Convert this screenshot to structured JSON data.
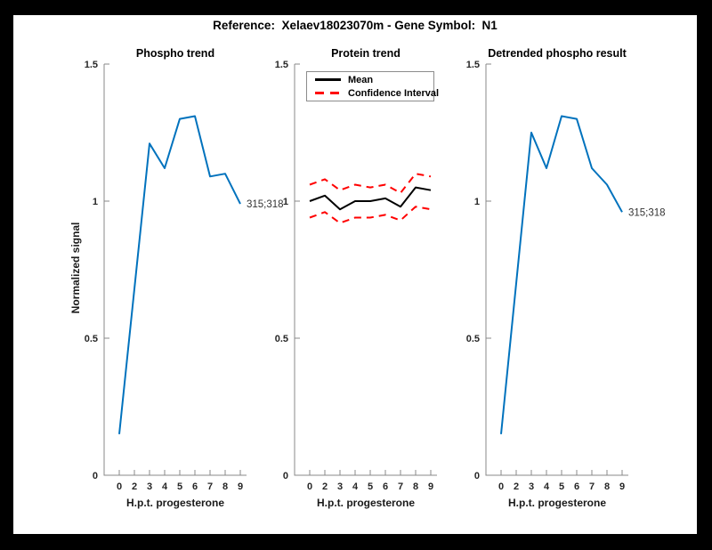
{
  "window": {
    "bg": "#000000",
    "figure_bg": "#ffffff",
    "suptitle": "Reference:  Xelaev18023070m - Gene Symbol:  N1"
  },
  "style": {
    "axis_color": "#888888",
    "tick_label_color": "#262626",
    "annotation_color": "#333333",
    "phospho_blue": "#0072BD",
    "ci_red": "#ff0000",
    "mean_black": "#000000"
  },
  "axes_common": {
    "xlabel": "H.p.t. progesterone",
    "ylabel": "Normalized signal",
    "xticklabels": [
      "0",
      "2",
      "3",
      "4",
      "5",
      "6",
      "7",
      "8",
      "9"
    ],
    "yticklabels": [
      "0",
      "0.5",
      "1",
      "1.5"
    ],
    "ylim": [
      0,
      1.5
    ],
    "grid": "off"
  },
  "chart_data": [
    {
      "type": "line",
      "title": "Phospho trend",
      "xlabel": "H.p.t. progesterone",
      "ylabel": "Normalized signal",
      "x": [
        "0",
        "2",
        "3",
        "4",
        "5",
        "6",
        "7",
        "8",
        "9"
      ],
      "ylim": [
        0,
        1.5
      ],
      "series": [
        {
          "name": "phospho signal",
          "color": "#0072BD",
          "style": "solid",
          "values": [
            0.15,
            0.68,
            1.21,
            1.12,
            1.3,
            1.31,
            1.09,
            1.1,
            0.99
          ]
        }
      ],
      "annotation": {
        "text": "315;318",
        "index": 8
      }
    },
    {
      "type": "line",
      "title": "Protein trend",
      "xlabel": "H.p.t. progesterone",
      "ylabel": "",
      "x": [
        "0",
        "2",
        "3",
        "4",
        "5",
        "6",
        "7",
        "8",
        "9"
      ],
      "ylim": [
        0,
        1.5
      ],
      "series": [
        {
          "name": "Mean",
          "color": "#000000",
          "style": "solid",
          "values": [
            1.0,
            1.02,
            0.97,
            1.0,
            1.0,
            1.01,
            0.98,
            1.05,
            1.04
          ]
        },
        {
          "name": "Confidence Interval upper",
          "color": "#ff0000",
          "style": "dashed",
          "values": [
            1.06,
            1.08,
            1.04,
            1.06,
            1.05,
            1.06,
            1.03,
            1.1,
            1.09
          ]
        },
        {
          "name": "Confidence Interval lower",
          "color": "#ff0000",
          "style": "dashed",
          "values": [
            0.94,
            0.96,
            0.92,
            0.94,
            0.94,
            0.95,
            0.93,
            0.98,
            0.97
          ]
        }
      ],
      "legend": {
        "position": "northwest",
        "entries": [
          {
            "label": "Mean",
            "color": "#000000",
            "style": "solid"
          },
          {
            "label": "Confidence Interval",
            "color": "#ff0000",
            "style": "dashed"
          }
        ]
      }
    },
    {
      "type": "line",
      "title": "Detrended phospho result",
      "xlabel": "H.p.t. progesterone",
      "ylabel": "",
      "x": [
        "0",
        "2",
        "3",
        "4",
        "5",
        "6",
        "7",
        "8",
        "9"
      ],
      "ylim": [
        0,
        1.5
      ],
      "series": [
        {
          "name": "detrended phospho signal",
          "color": "#0072BD",
          "style": "solid",
          "values": [
            0.15,
            0.7,
            1.25,
            1.12,
            1.31,
            1.3,
            1.12,
            1.06,
            0.96
          ]
        }
      ],
      "annotation": {
        "text": "315;318",
        "index": 8
      }
    }
  ]
}
